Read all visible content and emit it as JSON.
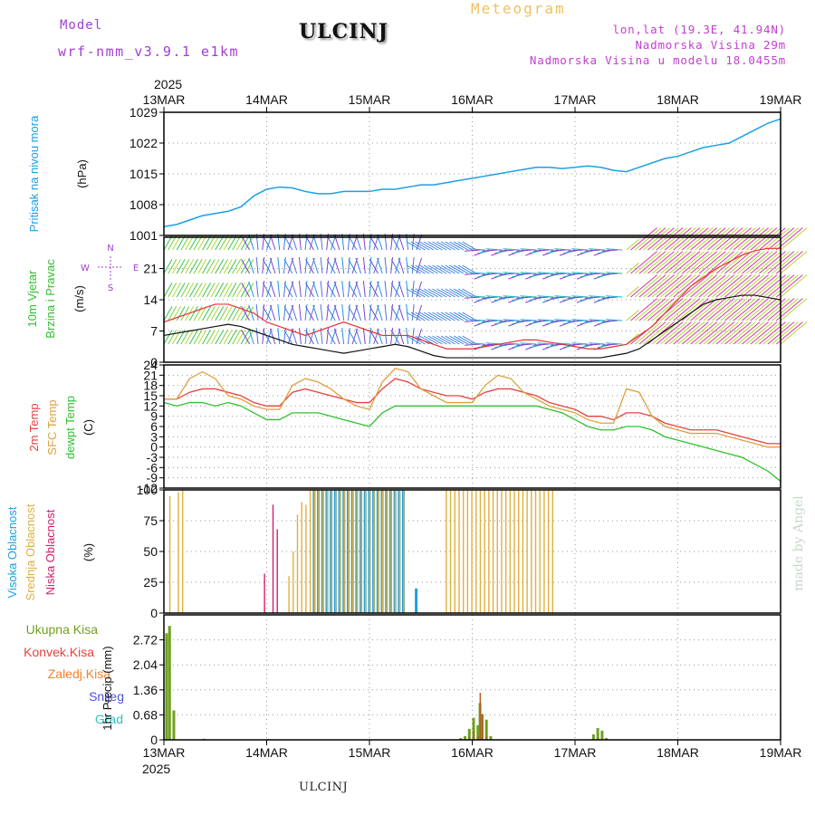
{
  "header": {
    "model_label": "Model",
    "model_name": "wrf-nmm_v3.9.1 e1km",
    "title": "ULCINJ",
    "meteogram": "Meteogram",
    "lonlat": "lon,lat (19.3E, 41.94N)",
    "altitude": "Nadmorska Visina 29m",
    "altitude_model": "Nadmorska Visina u modelu 18.0455m",
    "watermark": "made by Angel"
  },
  "footer": {
    "station": "ULCINJ"
  },
  "time_axis": {
    "year": "2025",
    "labels": [
      "13MAR",
      "14MAR",
      "15MAR",
      "16MAR",
      "17MAR",
      "18MAR",
      "19MAR"
    ],
    "hours": 144
  },
  "colors": {
    "pressure": "#1aa0e6",
    "wind_speed": "#111111",
    "gust": "#e83030",
    "t2m": "#e84040",
    "sfc": "#e0a040",
    "dewpt": "#30c030",
    "high": "#20a0e0",
    "mid": "#e0b040",
    "low": "#d02070",
    "total": "#70a020",
    "conv": "#e84040",
    "frz": "#f08030",
    "snow": "#5050e0",
    "grad": "#30c0c0"
  },
  "chart_data": [
    {
      "type": "line",
      "panel": "pressure",
      "ylabel_title": "Pritisak na nivou mora",
      "ylabel_unit": "(hPa)",
      "ylim": [
        1001,
        1029
      ],
      "yticks": [
        1001,
        1008,
        1015,
        1022,
        1029
      ],
      "x_hours": [
        0,
        3,
        6,
        9,
        12,
        15,
        18,
        21,
        24,
        27,
        30,
        33,
        36,
        39,
        42,
        45,
        48,
        51,
        54,
        57,
        60,
        63,
        66,
        69,
        72,
        75,
        78,
        81,
        84,
        87,
        90,
        93,
        96,
        99,
        102,
        105,
        108,
        111,
        114,
        117,
        120,
        123,
        126,
        129,
        132,
        135,
        138,
        141,
        144
      ],
      "values": [
        1003,
        1003.5,
        1004.5,
        1005.5,
        1006,
        1006.5,
        1007.5,
        1010,
        1011.5,
        1012,
        1011.8,
        1011,
        1010.5,
        1010.5,
        1011,
        1011,
        1011,
        1011.5,
        1011.5,
        1012,
        1012.5,
        1012.5,
        1013,
        1013.5,
        1014,
        1014.5,
        1015,
        1015.5,
        1016,
        1016.5,
        1016.5,
        1016.2,
        1016.5,
        1016.8,
        1016.5,
        1015.8,
        1015.5,
        1016.5,
        1017.5,
        1018.5,
        1019,
        1020,
        1021,
        1021.5,
        1022,
        1023.5,
        1025,
        1026.5,
        1027.5
      ]
    },
    {
      "type": "line",
      "panel": "wind",
      "ylabel_title": "10m Vjetar Brzina i Pravac",
      "ylabel_unit": "(m/s)",
      "compass": "N W E S",
      "ylim": [
        0,
        28
      ],
      "yticks": [
        0,
        7,
        14,
        21
      ],
      "x_hours": [
        0,
        3,
        6,
        9,
        12,
        15,
        18,
        21,
        24,
        27,
        30,
        33,
        36,
        39,
        42,
        45,
        48,
        51,
        54,
        57,
        60,
        63,
        66,
        69,
        72,
        75,
        78,
        81,
        84,
        87,
        90,
        93,
        96,
        99,
        102,
        105,
        108,
        111,
        114,
        117,
        120,
        123,
        126,
        129,
        132,
        135,
        138,
        141,
        144
      ],
      "series": [
        {
          "name": "speed",
          "values": [
            6,
            6.5,
            7,
            7.5,
            8,
            8.5,
            8,
            7,
            6,
            5,
            4,
            3.5,
            3,
            2.5,
            2,
            2.5,
            3,
            3.5,
            4,
            3.5,
            2.5,
            1.5,
            1,
            1,
            1,
            1,
            1,
            1,
            1,
            1,
            1,
            1,
            1,
            1,
            1,
            1.5,
            2,
            3,
            5,
            7,
            9,
            11,
            13,
            14,
            14.5,
            15,
            15,
            14.5,
            14
          ]
        },
        {
          "name": "gust",
          "values": [
            9,
            10,
            11,
            12,
            13,
            13,
            12,
            11,
            9,
            8,
            7,
            6,
            7,
            8,
            9,
            8,
            7,
            6,
            6,
            6,
            5,
            4,
            3,
            3,
            3,
            3.5,
            4,
            4.5,
            5,
            5,
            4.5,
            4,
            3.5,
            3,
            3,
            3.5,
            4,
            6,
            8,
            11,
            14,
            17,
            19,
            21,
            22.5,
            24,
            25,
            25.5,
            25.5
          ]
        }
      ]
    },
    {
      "type": "line",
      "panel": "temperature",
      "ylabel_title": "2m Temp SFC Temp dewpt Temp",
      "ylabel_unit": "(C)",
      "ylim": [
        -12,
        24
      ],
      "yticks": [
        -12,
        -9,
        -6,
        -3,
        0,
        3,
        6,
        9,
        12,
        15,
        18,
        21,
        24
      ],
      "x_hours": [
        0,
        3,
        6,
        9,
        12,
        15,
        18,
        21,
        24,
        27,
        30,
        33,
        36,
        39,
        42,
        45,
        48,
        51,
        54,
        57,
        60,
        63,
        66,
        69,
        72,
        75,
        78,
        81,
        84,
        87,
        90,
        93,
        96,
        99,
        102,
        105,
        108,
        111,
        114,
        117,
        120,
        123,
        126,
        129,
        132,
        135,
        138,
        141,
        144
      ],
      "series": [
        {
          "name": "2m Temp",
          "values": [
            14,
            14,
            16,
            17,
            17,
            16,
            15,
            13,
            12,
            12,
            16,
            17,
            16,
            15,
            14,
            13,
            13,
            17,
            20,
            19,
            17,
            16,
            15,
            15,
            14,
            16,
            17,
            17,
            16,
            15,
            13,
            12,
            11,
            9,
            9,
            8,
            10,
            10,
            9,
            7,
            6,
            5,
            5,
            5,
            4,
            3,
            2,
            1,
            1
          ]
        },
        {
          "name": "SFC Temp",
          "values": [
            14,
            14,
            20,
            22,
            20,
            15,
            14,
            12,
            11,
            11,
            18,
            20,
            19,
            17,
            14,
            12,
            11,
            19,
            23,
            22,
            17,
            15,
            13,
            13,
            13,
            18,
            21,
            20,
            16,
            14,
            12,
            11,
            10,
            8,
            7,
            7,
            17,
            16,
            9,
            6,
            5,
            4,
            4,
            4,
            3,
            2,
            1,
            0,
            0
          ]
        },
        {
          "name": "dewpt Temp",
          "values": [
            13,
            12,
            13,
            13,
            12,
            13,
            12,
            10,
            8,
            8,
            10,
            10,
            10,
            9,
            8,
            7,
            6,
            10,
            12,
            12,
            12,
            12,
            12,
            12,
            12,
            12,
            12,
            12,
            12,
            12,
            11,
            10,
            8,
            6,
            5,
            5,
            6,
            6,
            5,
            3,
            2,
            1,
            0,
            -1,
            -2,
            -3,
            -5,
            -7,
            -10
          ]
        }
      ]
    },
    {
      "type": "bar",
      "panel": "clouds",
      "ylabel_title": "Visoka Oblacnost Srednja Oblacnost Niska Oblacnost",
      "ylabel_unit": "(%)",
      "ylim": [
        0,
        100
      ],
      "yticks": [
        0,
        25,
        50,
        75,
        100
      ],
      "series": [
        {
          "name": "Visoka Oblacnost",
          "values": [
            0,
            0,
            0,
            0,
            0,
            0,
            0,
            0,
            0,
            0,
            0,
            0,
            0,
            0,
            0,
            0,
            0,
            0,
            0,
            0,
            0,
            0,
            0,
            0,
            0,
            0,
            0,
            0,
            0,
            0,
            0,
            0,
            0,
            0,
            0,
            100,
            100,
            100,
            100,
            100,
            100,
            100,
            100,
            100,
            100,
            100,
            100,
            100,
            100,
            100,
            100,
            100,
            100,
            100,
            100,
            100,
            100,
            0,
            0,
            20,
            0,
            0,
            0,
            0,
            0,
            0,
            0,
            0,
            0,
            0,
            0,
            0,
            0,
            0,
            0,
            0,
            0,
            0,
            0,
            0,
            0,
            0,
            0,
            0,
            0,
            0,
            0,
            0,
            0,
            0,
            0,
            0,
            0,
            0,
            0,
            0,
            0,
            0,
            0,
            0,
            0,
            0,
            0,
            0,
            0,
            0,
            0,
            0,
            0,
            0,
            0,
            0,
            0,
            0,
            0,
            0,
            0,
            0,
            0,
            0,
            0,
            0,
            0,
            0,
            0,
            0,
            0,
            0,
            0,
            0,
            0,
            0,
            0,
            0,
            0,
            0,
            0,
            0,
            0,
            0,
            0,
            0,
            0,
            0,
            0
          ]
        },
        {
          "name": "Srednja Oblacnost",
          "values": [
            0,
            95,
            0,
            98,
            100,
            0,
            0,
            0,
            0,
            0,
            0,
            0,
            0,
            0,
            0,
            0,
            0,
            0,
            0,
            0,
            0,
            0,
            0,
            0,
            0,
            0,
            0,
            0,
            0,
            30,
            50,
            80,
            90,
            88,
            100,
            100,
            100,
            100,
            100,
            100,
            100,
            100,
            100,
            100,
            100,
            100,
            100,
            100,
            100,
            100,
            100,
            100,
            100,
            100,
            100,
            100,
            100,
            0,
            0,
            0,
            0,
            0,
            0,
            0,
            0,
            0,
            100,
            100,
            100,
            100,
            100,
            100,
            100,
            100,
            100,
            100,
            100,
            100,
            100,
            100,
            100,
            100,
            100,
            100,
            100,
            100,
            100,
            100,
            100,
            100,
            100,
            100,
            0,
            0,
            0,
            0,
            0,
            0,
            0,
            0,
            0,
            0,
            0,
            0,
            0,
            0,
            0,
            0,
            0,
            0,
            0,
            0,
            0,
            0,
            0,
            0,
            0,
            0,
            0,
            0,
            0,
            0,
            0,
            0,
            0,
            0,
            0,
            0,
            0,
            0,
            0,
            0,
            0,
            0,
            0,
            0,
            0,
            0,
            0,
            0,
            0,
            0,
            0,
            0,
            0,
            0,
            0,
            0,
            0,
            0,
            0,
            0,
            0,
            0,
            0,
            0,
            0,
            0,
            0,
            0,
            0,
            0,
            0,
            0,
            0,
            0,
            0,
            0,
            0,
            0,
            0,
            0,
            0,
            0,
            0,
            0,
            0,
            0,
            0,
            0,
            0,
            0,
            0,
            0,
            0,
            0,
            0,
            0,
            0,
            0,
            0,
            0,
            0,
            0,
            0,
            0,
            0,
            0,
            0,
            0,
            0,
            0,
            0,
            0,
            0,
            0,
            0,
            0,
            0,
            0,
            0,
            0,
            0,
            0,
            0,
            0,
            0,
            0,
            0,
            0,
            0,
            0,
            0,
            0,
            0,
            0,
            0,
            0,
            0,
            0,
            0,
            0
          ]
        },
        {
          "name": "Niska Oblacnost",
          "values": [
            0,
            0,
            0,
            0,
            0,
            0,
            0,
            0,
            0,
            0,
            0,
            0,
            0,
            0,
            0,
            0,
            0,
            0,
            0,
            0,
            0,
            0,
            0,
            32,
            0,
            88,
            68,
            0,
            0,
            0,
            0,
            0,
            0,
            0,
            0,
            0,
            0,
            0,
            0,
            0,
            0,
            0,
            0,
            0,
            0,
            0,
            0,
            0,
            0,
            0,
            0,
            0,
            0,
            0,
            0,
            0,
            0,
            0,
            0,
            0,
            0,
            0,
            0,
            0,
            0,
            0,
            0,
            0,
            0,
            0,
            0,
            0,
            0,
            0,
            0,
            0,
            0,
            0,
            0,
            0,
            0,
            0,
            0,
            0,
            0,
            0,
            0,
            0,
            0,
            0,
            0,
            0,
            0,
            0,
            0,
            0,
            0,
            0,
            0,
            0,
            0,
            0,
            0,
            0,
            0,
            0,
            0,
            0,
            0,
            0,
            0,
            0,
            0,
            0,
            0,
            0,
            0,
            0,
            0,
            0,
            0,
            0,
            0,
            0,
            0,
            0,
            0,
            0,
            0,
            0,
            0,
            0,
            0,
            0,
            0,
            0,
            0,
            0,
            0,
            0,
            0,
            0,
            0,
            0,
            0
          ]
        }
      ]
    },
    {
      "type": "bar",
      "panel": "precip",
      "ylabel_title": "1hr Precip",
      "ylabel_unit": "(mm)",
      "legend": [
        "Ukupna Kisa",
        "Konvek.Kisa",
        "Zaledj.Kisa",
        "Snijeg",
        "Grad"
      ],
      "ylim": [
        0,
        3.4
      ],
      "yticks": [
        "0",
        "0.68",
        "1.36",
        "2.04",
        "2.72"
      ],
      "bars": [
        {
          "hour": 0.3,
          "total": 2.9,
          "conv": 0
        },
        {
          "hour": 1.0,
          "total": 3.1,
          "conv": 0
        },
        {
          "hour": 2.0,
          "total": 0.8,
          "conv": 0
        },
        {
          "hour": 9.0,
          "total": 0.03,
          "conv": 0
        },
        {
          "hour": 24.0,
          "total": 0.02,
          "conv": 0.02
        },
        {
          "hour": 69.0,
          "total": 0.05,
          "conv": 0
        },
        {
          "hour": 70.0,
          "total": 0.1,
          "conv": 0
        },
        {
          "hour": 71.0,
          "total": 0.3,
          "conv": 0.1
        },
        {
          "hour": 72.0,
          "total": 0.6,
          "conv": 0.25
        },
        {
          "hour": 73.0,
          "total": 0.4,
          "conv": 0.1
        },
        {
          "hour": 73.5,
          "total": 1.0,
          "conv": 1.28
        },
        {
          "hour": 74.0,
          "total": 0.7,
          "conv": 0.7
        },
        {
          "hour": 75.0,
          "total": 0.55,
          "conv": 0.1
        },
        {
          "hour": 76.0,
          "total": 0.1,
          "conv": 0
        },
        {
          "hour": 100.0,
          "total": 0.15,
          "conv": 0
        },
        {
          "hour": 101.0,
          "total": 0.32,
          "conv": 0.05
        },
        {
          "hour": 102.0,
          "total": 0.25,
          "conv": 0
        },
        {
          "hour": 103.0,
          "total": 0.05,
          "conv": 0
        }
      ]
    }
  ]
}
